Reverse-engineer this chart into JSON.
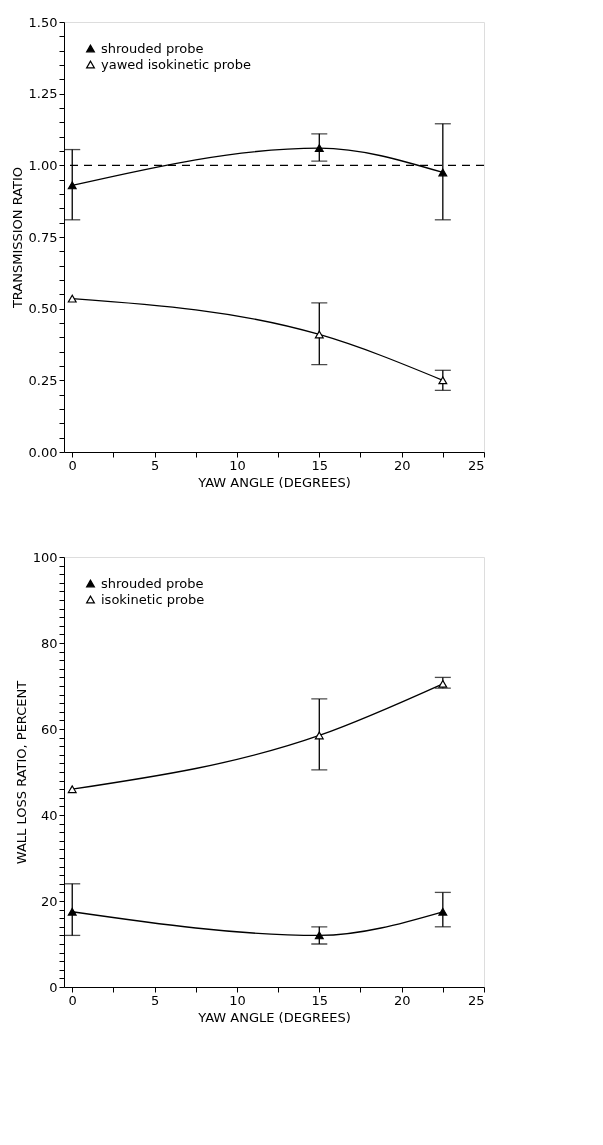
{
  "chart_data": [
    {
      "type": "line",
      "xlabel": "YAW ANGLE (DEGREES)",
      "ylabel": "TRANSMISSION RATIO",
      "marker": "triangle",
      "line_style": "solid",
      "legend": "top left",
      "grid": false,
      "x": [
        0,
        15,
        22.5
      ],
      "series": [
        {
          "name": "shrouded probe",
          "color": "#000000",
          "values": [
            0.93,
            1.06,
            0.975
          ],
          "errors": [
            [
              0.81,
              1.055
            ],
            [
              1.015,
              1.11
            ],
            [
              0.81,
              1.145
            ]
          ]
        },
        {
          "name": "yawed isokinetic probe",
          "color": "#000000",
          "values": [
            0.535,
            0.41,
            0.25
          ],
          "errors": [
            null,
            [
              0.305,
              0.52
            ],
            [
              0.215,
              0.285
            ]
          ]
        }
      ],
      "ref_lines": [
        {
          "axis": "y",
          "value": 1.0,
          "label": null,
          "color": "#000000",
          "line_style": "dashed"
        }
      ],
      "xlim": [
        -0.5,
        25
      ],
      "xticks": [
        0,
        {
          "value": 2.5,
          "label": null
        },
        5,
        {
          "value": 7.5,
          "label": null
        },
        10,
        {
          "value": 12.5,
          "label": null
        },
        15,
        {
          "value": 17.5,
          "label": null
        },
        20,
        {
          "value": 22.5,
          "label": null
        },
        25
      ],
      "ylim": [
        0,
        1.5
      ],
      "yticks": [
        {
          "value": 0,
          "label": "0.00"
        },
        {
          "value": 0.05,
          "label": null
        },
        {
          "value": 0.1,
          "label": null
        },
        {
          "value": 0.15,
          "label": null
        },
        {
          "value": 0.2,
          "label": null
        },
        {
          "value": 0.25,
          "label": "0.25"
        },
        {
          "value": 0.3,
          "label": null
        },
        {
          "value": 0.35,
          "label": null
        },
        {
          "value": 0.4,
          "label": null
        },
        {
          "value": 0.45,
          "label": null
        },
        {
          "value": 0.5,
          "label": "0.50"
        },
        {
          "value": 0.55,
          "label": null
        },
        {
          "value": 0.6,
          "label": null
        },
        {
          "value": 0.65,
          "label": null
        },
        {
          "value": 0.7,
          "label": null
        },
        {
          "value": 0.75,
          "label": "0.75"
        },
        {
          "value": 0.8,
          "label": null
        },
        {
          "value": 0.85,
          "label": null
        },
        {
          "value": 0.9,
          "label": null
        },
        {
          "value": 0.95,
          "label": null
        },
        {
          "value": 1.0,
          "label": "1.00"
        },
        {
          "value": 1.05,
          "label": null
        },
        {
          "value": 1.1,
          "label": null
        },
        {
          "value": 1.15,
          "label": null
        },
        {
          "value": 1.2,
          "label": null
        },
        {
          "value": 1.25,
          "label": "1.25"
        },
        {
          "value": 1.3,
          "label": null
        },
        {
          "value": 1.35,
          "label": null
        },
        {
          "value": 1.4,
          "label": null
        },
        {
          "value": 1.45,
          "label": null
        },
        {
          "value": 1.5,
          "label": "1.50"
        }
      ]
    },
    {
      "type": "line",
      "xlabel": "YAW ANGLE (DEGREES)",
      "ylabel": "WALL LOSS RATIO, PERCENT",
      "marker": "triangle",
      "line_style": "solid",
      "legend": "top left",
      "grid": false,
      "x": [
        0,
        15,
        22.5
      ],
      "series": [
        {
          "name": "shrouded probe",
          "color": "#000000",
          "values": [
            17.5,
            12,
            17.5
          ],
          "errors": [
            [
              12,
              24
            ],
            [
              10,
              14
            ],
            [
              14,
              22
            ]
          ]
        },
        {
          "name": "isokinetic probe",
          "color": "#000000",
          "values": [
            46,
            58.5,
            70.5
          ],
          "errors": [
            null,
            [
              50.5,
              67
            ],
            [
              69.5,
              72
            ]
          ]
        }
      ],
      "xlim": [
        -0.5,
        25
      ],
      "xticks": [
        0,
        {
          "value": 2.5,
          "label": null
        },
        5,
        {
          "value": 7.5,
          "label": null
        },
        10,
        {
          "value": 12.5,
          "label": null
        },
        15,
        {
          "value": 17.5,
          "label": null
        },
        20,
        {
          "value": 22.5,
          "label": null
        },
        25
      ],
      "ylim": [
        0,
        100
      ],
      "yticks": [
        0,
        {
          "value": 2,
          "label": null
        },
        {
          "value": 4,
          "label": null
        },
        {
          "value": 6,
          "label": null
        },
        {
          "value": 8,
          "label": null
        },
        {
          "value": 10,
          "label": null
        },
        {
          "value": 12,
          "label": null
        },
        {
          "value": 14,
          "label": null
        },
        {
          "value": 16,
          "label": null
        },
        {
          "value": 18,
          "label": null
        },
        20,
        {
          "value": 22,
          "label": null
        },
        {
          "value": 24,
          "label": null
        },
        {
          "value": 26,
          "label": null
        },
        {
          "value": 28,
          "label": null
        },
        {
          "value": 30,
          "label": null
        },
        {
          "value": 32,
          "label": null
        },
        {
          "value": 34,
          "label": null
        },
        {
          "value": 36,
          "label": null
        },
        {
          "value": 38,
          "label": null
        },
        40,
        {
          "value": 42,
          "label": null
        },
        {
          "value": 44,
          "label": null
        },
        {
          "value": 46,
          "label": null
        },
        {
          "value": 48,
          "label": null
        },
        {
          "value": 50,
          "label": null
        },
        {
          "value": 52,
          "label": null
        },
        {
          "value": 54,
          "label": null
        },
        {
          "value": 56,
          "label": null
        },
        {
          "value": 58,
          "label": null
        },
        60,
        {
          "value": 62,
          "label": null
        },
        {
          "value": 64,
          "label": null
        },
        {
          "value": 66,
          "label": null
        },
        {
          "value": 68,
          "label": null
        },
        {
          "value": 70,
          "label": null
        },
        {
          "value": 72,
          "label": null
        },
        {
          "value": 74,
          "label": null
        },
        {
          "value": 76,
          "label": null
        },
        {
          "value": 78,
          "label": null
        },
        80,
        {
          "value": 82,
          "label": null
        },
        {
          "value": 84,
          "label": null
        },
        {
          "value": 86,
          "label": null
        },
        {
          "value": 88,
          "label": null
        },
        {
          "value": 90,
          "label": null
        },
        {
          "value": 92,
          "label": null
        },
        {
          "value": 94,
          "label": null
        },
        {
          "value": 96,
          "label": null
        },
        {
          "value": 98,
          "label": null
        },
        100
      ]
    }
  ]
}
